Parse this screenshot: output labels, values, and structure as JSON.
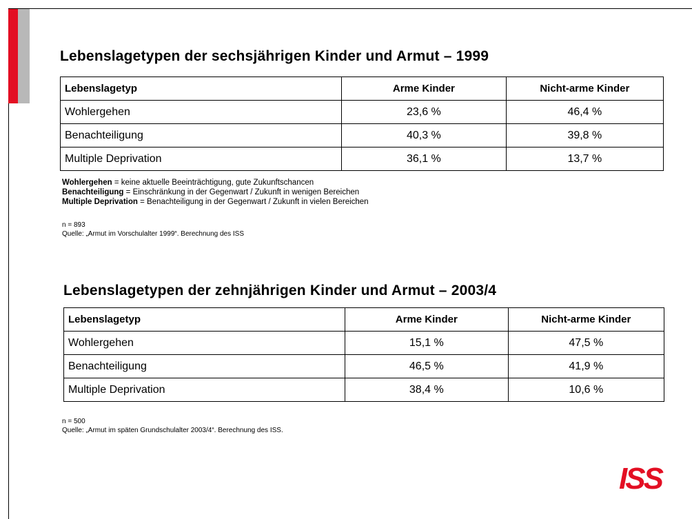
{
  "sections": [
    {
      "title": "Lebenslagetypen der sechsjährigen Kinder und Armut – 1999",
      "table": {
        "header": [
          "Lebenslagetyp",
          "Arme Kinder",
          "Nicht-arme Kinder"
        ],
        "rows": [
          [
            "Wohlergehen",
            "23,6 %",
            "46,4 %"
          ],
          [
            "Benachteiligung",
            "40,3 %",
            "39,8 %"
          ],
          [
            "Multiple Deprivation",
            "36,1 %",
            "13,7 %"
          ]
        ]
      },
      "notes": [
        {
          "term": "Wohlergehen",
          "definition": "= keine aktuelle Beeinträchtigung, gute Zukunftschancen"
        },
        {
          "term": "Benachteiligung",
          "definition": "= Einschränkung in der Gegenwart / Zukunft in wenigen Bereichen"
        },
        {
          "term": "Multiple Deprivation",
          "definition": "= Benachteiligung in der Gegenwart / Zukunft in vielen Bereichen"
        }
      ],
      "n": "n = 893",
      "source": "Quelle: „Armut im Vorschulalter 1999“. Berechnung des ISS"
    },
    {
      "title": "Lebenslagetypen der zehnjährigen Kinder und Armut – 2003/4",
      "table": {
        "header": [
          "Lebenslagetyp",
          "Arme Kinder",
          "Nicht-arme Kinder"
        ],
        "rows": [
          [
            "Wohlergehen",
            "15,1 %",
            "47,5 %"
          ],
          [
            "Benachteiligung",
            "46,5 %",
            "41,9 %"
          ],
          [
            "Multiple Deprivation",
            "38,4 %",
            "10,6 %"
          ]
        ]
      },
      "notes": [],
      "n": "n = 500",
      "source": "Quelle: „Armut im späten Grundschulalter 2003/4“. Berechnung des ISS."
    }
  ],
  "logo": "ISS"
}
